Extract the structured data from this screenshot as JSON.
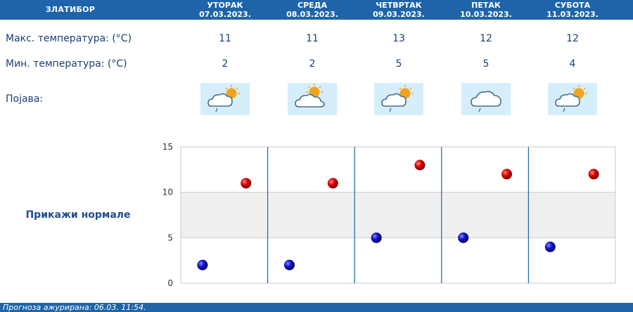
{
  "header": {
    "station": "ЗЛАТИБОР",
    "days": [
      {
        "name": "УТОРАК",
        "date": "07.03.2023."
      },
      {
        "name": "СРЕДА",
        "date": "08.03.2023."
      },
      {
        "name": "ЧЕТВРТАК",
        "date": "09.03.2023."
      },
      {
        "name": "ПЕТАК",
        "date": "10.03.2023."
      },
      {
        "name": "СУБОТА",
        "date": "11.03.2023."
      }
    ]
  },
  "rows": {
    "max_label": "Макс. температура: (°C)",
    "min_label": "Мин. температура: (°C)",
    "weather_label": "Појава:",
    "max": [
      "11",
      "11",
      "13",
      "12",
      "12"
    ],
    "min": [
      "2",
      "2",
      "5",
      "5",
      "4"
    ],
    "icons": [
      "sun-cloud-rain-icon",
      "sun-cloud-icon",
      "sun-cloud-rain-icon",
      "cloud-rain-icon",
      "sun-cloud-rain-icon"
    ]
  },
  "normals_link": "Прикажи нормале",
  "footer": "Прогноза ажурирана:  06.03.  11:54.",
  "colors": {
    "header_bg": "#1f64a8",
    "max_point": "#cc0000",
    "min_point": "#0000cc",
    "band": "#efefef",
    "icon_bg": "#d6eefb"
  },
  "chart_data": {
    "type": "scatter",
    "title": "",
    "xlabel": "",
    "ylabel": "",
    "categories": [
      "07.03.2023.",
      "08.03.2023.",
      "09.03.2023.",
      "10.03.2023.",
      "11.03.2023."
    ],
    "ylim": [
      0,
      15
    ],
    "yticks": [
      0,
      5,
      10,
      15
    ],
    "shaded_band": [
      5,
      10
    ],
    "series": [
      {
        "values": [
          11,
          11,
          13,
          12,
          12
        ],
        "color": "#cc0000"
      },
      {
        "values": [
          2,
          2,
          5,
          5,
          4
        ],
        "color": "#0000cc"
      }
    ]
  }
}
